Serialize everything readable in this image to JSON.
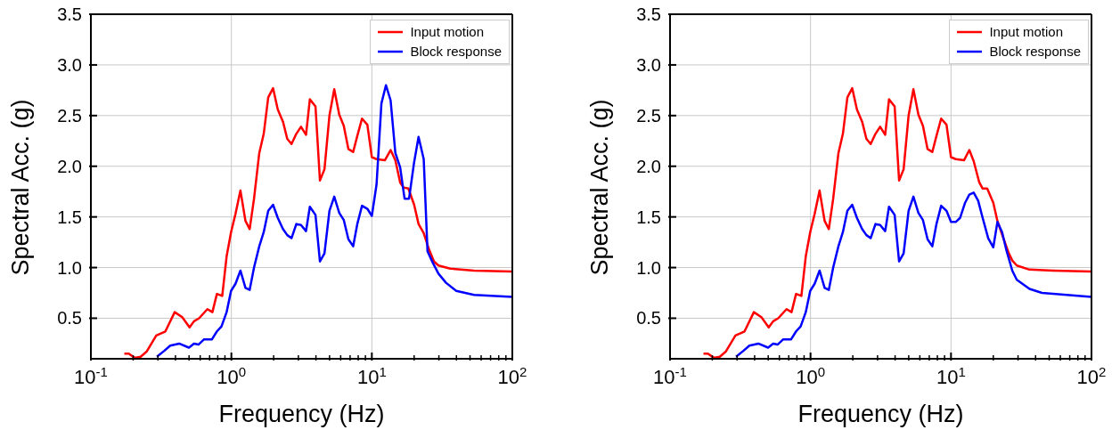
{
  "chart_data": [
    {
      "type": "line",
      "xlabel": "Frequency (Hz)",
      "ylabel": "Spectral Acc. (g)",
      "log": "x",
      "grid": true,
      "legend": "top right",
      "line_style": "solid",
      "marker": "none",
      "xlim": [
        0.1,
        100
      ],
      "ylim": [
        0.1,
        3.5
      ],
      "xticks": [
        {
          "value": 0.1,
          "label": "10$^{-1}$"
        },
        {
          "value": 0.2,
          "label": null
        },
        {
          "value": 0.3,
          "label": null
        },
        {
          "value": 0.4,
          "label": null
        },
        {
          "value": 0.5,
          "label": null
        },
        {
          "value": 0.6,
          "label": null
        },
        {
          "value": 0.7,
          "label": null
        },
        {
          "value": 0.8,
          "label": null
        },
        {
          "value": 0.9,
          "label": null
        },
        {
          "value": 1,
          "label": "10$^{0}$"
        },
        {
          "value": 2,
          "label": null
        },
        {
          "value": 3,
          "label": null
        },
        {
          "value": 4,
          "label": null
        },
        {
          "value": 5,
          "label": null
        },
        {
          "value": 6,
          "label": null
        },
        {
          "value": 7,
          "label": null
        },
        {
          "value": 8,
          "label": null
        },
        {
          "value": 9,
          "label": null
        },
        {
          "value": 10,
          "label": "10$^{1}$"
        },
        {
          "value": 20,
          "label": null
        },
        {
          "value": 30,
          "label": null
        },
        {
          "value": 40,
          "label": null
        },
        {
          "value": 50,
          "label": null
        },
        {
          "value": 60,
          "label": null
        },
        {
          "value": 70,
          "label": null
        },
        {
          "value": 80,
          "label": null
        },
        {
          "value": 90,
          "label": null
        },
        {
          "value": 100,
          "label": "10$^{2}$"
        }
      ],
      "yticks": [
        {
          "value": 0.5,
          "label": "0.5"
        },
        {
          "value": 1,
          "label": "1.0"
        },
        {
          "value": 1.5,
          "label": "1.5"
        },
        {
          "value": 2,
          "label": "2.0"
        },
        {
          "value": 2.5,
          "label": "2.5"
        },
        {
          "value": 3,
          "label": "3.0"
        },
        {
          "value": 3.5,
          "label": "3.5"
        }
      ],
      "series": [
        {
          "name": "Input motion",
          "color": "#ff0000",
          "x": [
            0.173,
            0.186,
            0.205,
            0.226,
            0.249,
            0.292,
            0.339,
            0.395,
            0.447,
            0.504,
            0.542,
            0.589,
            0.675,
            0.733,
            0.789,
            0.861,
            0.925,
            0.995,
            1.07,
            1.16,
            1.26,
            1.35,
            1.45,
            1.58,
            1.7,
            1.83,
            1.98,
            2.14,
            2.33,
            2.5,
            2.68,
            2.9,
            3.13,
            3.4,
            3.62,
            3.97,
            4.27,
            4.6,
            4.99,
            5.4,
            5.86,
            6.31,
            6.81,
            7.36,
            7.88,
            8.51,
            9.29,
            10.0,
            10.8,
            12.4,
            13.6,
            14.7,
            15.9,
            16.8,
            18.2,
            20.0,
            21.5,
            23.4,
            25.5,
            27.7,
            29.8,
            36.2,
            53.4,
            100
          ],
          "values": [
            0.15,
            0.15,
            0.11,
            0.12,
            0.17,
            0.33,
            0.37,
            0.56,
            0.51,
            0.41,
            0.47,
            0.5,
            0.59,
            0.56,
            0.74,
            0.72,
            1.11,
            1.35,
            1.53,
            1.76,
            1.46,
            1.38,
            1.68,
            2.13,
            2.32,
            2.68,
            2.77,
            2.56,
            2.44,
            2.27,
            2.22,
            2.32,
            2.39,
            2.31,
            2.66,
            2.59,
            1.86,
            1.97,
            2.5,
            2.76,
            2.51,
            2.4,
            2.17,
            2.14,
            2.3,
            2.47,
            2.41,
            2.09,
            2.07,
            2.06,
            2.16,
            2.06,
            1.84,
            1.79,
            1.78,
            1.62,
            1.43,
            1.34,
            1.18,
            1.06,
            1.02,
            0.99,
            0.97,
            0.96
          ]
        },
        {
          "name": "Block response",
          "color": "#0000ff",
          "x": [
            0.295,
            0.334,
            0.367,
            0.425,
            0.499,
            0.542,
            0.583,
            0.637,
            0.726,
            0.789,
            0.851,
            0.925,
            0.995,
            1.07,
            1.16,
            1.26,
            1.35,
            1.45,
            1.58,
            1.7,
            1.83,
            1.98,
            2.14,
            2.33,
            2.5,
            2.68,
            2.9,
            3.13,
            3.4,
            3.62,
            3.97,
            4.27,
            4.6,
            4.99,
            5.4,
            5.86,
            6.31,
            6.81,
            7.36,
            7.88,
            8.51,
            9.29,
            10.0,
            10.8,
            11.7,
            12.6,
            13.6,
            14.7,
            15.9,
            17.1,
            18.4,
            20.0,
            21.5,
            23.4,
            24.9,
            27.1,
            29.8,
            33.7,
            39.9,
            53.4,
            100
          ],
          "values": [
            0.12,
            0.18,
            0.23,
            0.25,
            0.21,
            0.25,
            0.24,
            0.29,
            0.29,
            0.37,
            0.42,
            0.56,
            0.77,
            0.84,
            0.97,
            0.8,
            0.78,
            1.0,
            1.21,
            1.35,
            1.56,
            1.62,
            1.49,
            1.38,
            1.32,
            1.29,
            1.43,
            1.42,
            1.36,
            1.6,
            1.52,
            1.06,
            1.14,
            1.56,
            1.7,
            1.54,
            1.47,
            1.28,
            1.21,
            1.43,
            1.61,
            1.58,
            1.51,
            1.82,
            2.62,
            2.8,
            2.65,
            2.13,
            1.99,
            1.68,
            1.68,
            2.04,
            2.29,
            2.07,
            1.16,
            1.05,
            0.94,
            0.85,
            0.77,
            0.73,
            0.71
          ]
        }
      ]
    },
    {
      "type": "line",
      "xlabel": "Frequency (Hz)",
      "ylabel": "Spectral Acc. (g)",
      "log": "x",
      "grid": true,
      "legend": "top right",
      "line_style": "solid",
      "marker": "none",
      "xlim": [
        0.1,
        100
      ],
      "ylim": [
        0.1,
        3.5
      ],
      "xticks": [
        {
          "value": 0.1,
          "label": "10$^{-1}$"
        },
        {
          "value": 0.2,
          "label": null
        },
        {
          "value": 0.3,
          "label": null
        },
        {
          "value": 0.4,
          "label": null
        },
        {
          "value": 0.5,
          "label": null
        },
        {
          "value": 0.6,
          "label": null
        },
        {
          "value": 0.7,
          "label": null
        },
        {
          "value": 0.8,
          "label": null
        },
        {
          "value": 0.9,
          "label": null
        },
        {
          "value": 1,
          "label": "10$^{0}$"
        },
        {
          "value": 2,
          "label": null
        },
        {
          "value": 3,
          "label": null
        },
        {
          "value": 4,
          "label": null
        },
        {
          "value": 5,
          "label": null
        },
        {
          "value": 6,
          "label": null
        },
        {
          "value": 7,
          "label": null
        },
        {
          "value": 8,
          "label": null
        },
        {
          "value": 9,
          "label": null
        },
        {
          "value": 10,
          "label": "10$^{1}$"
        },
        {
          "value": 20,
          "label": null
        },
        {
          "value": 30,
          "label": null
        },
        {
          "value": 40,
          "label": null
        },
        {
          "value": 50,
          "label": null
        },
        {
          "value": 60,
          "label": null
        },
        {
          "value": 70,
          "label": null
        },
        {
          "value": 80,
          "label": null
        },
        {
          "value": 90,
          "label": null
        },
        {
          "value": 100,
          "label": "10$^{2}$"
        }
      ],
      "yticks": [
        {
          "value": 0.5,
          "label": "0.5"
        },
        {
          "value": 1,
          "label": "1.0"
        },
        {
          "value": 1.5,
          "label": "1.5"
        },
        {
          "value": 2,
          "label": "2.0"
        },
        {
          "value": 2.5,
          "label": "2.5"
        },
        {
          "value": 3,
          "label": "3.0"
        },
        {
          "value": 3.5,
          "label": "3.5"
        }
      ],
      "series": [
        {
          "name": "Input motion",
          "color": "#ff0000",
          "x": [
            0.173,
            0.186,
            0.205,
            0.226,
            0.249,
            0.292,
            0.339,
            0.395,
            0.447,
            0.504,
            0.542,
            0.589,
            0.675,
            0.733,
            0.789,
            0.861,
            0.925,
            0.995,
            1.07,
            1.16,
            1.26,
            1.35,
            1.45,
            1.58,
            1.7,
            1.83,
            1.98,
            2.14,
            2.33,
            2.5,
            2.68,
            2.9,
            3.13,
            3.4,
            3.62,
            3.97,
            4.27,
            4.6,
            4.99,
            5.4,
            5.86,
            6.31,
            6.81,
            7.36,
            7.88,
            8.51,
            9.29,
            10.0,
            10.8,
            12.4,
            13.5,
            14.5,
            15.9,
            16.8,
            18.1,
            20.0,
            21.4,
            23.6,
            25.8,
            27.3,
            29.4,
            36.2,
            53.4,
            100
          ],
          "values": [
            0.15,
            0.15,
            0.11,
            0.12,
            0.17,
            0.33,
            0.37,
            0.56,
            0.51,
            0.41,
            0.47,
            0.5,
            0.59,
            0.56,
            0.74,
            0.72,
            1.11,
            1.35,
            1.53,
            1.76,
            1.46,
            1.38,
            1.68,
            2.13,
            2.32,
            2.68,
            2.77,
            2.56,
            2.44,
            2.27,
            2.22,
            2.32,
            2.39,
            2.31,
            2.66,
            2.59,
            1.86,
            1.97,
            2.5,
            2.76,
            2.51,
            2.4,
            2.17,
            2.14,
            2.3,
            2.47,
            2.41,
            2.09,
            2.07,
            2.06,
            2.16,
            2.05,
            1.84,
            1.78,
            1.78,
            1.64,
            1.46,
            1.29,
            1.14,
            1.07,
            1.02,
            0.98,
            0.97,
            0.96
          ]
        },
        {
          "name": "Block response",
          "color": "#0000ff",
          "x": [
            0.295,
            0.334,
            0.367,
            0.425,
            0.499,
            0.542,
            0.583,
            0.637,
            0.726,
            0.789,
            0.851,
            0.925,
            0.995,
            1.07,
            1.16,
            1.26,
            1.35,
            1.45,
            1.58,
            1.7,
            1.83,
            1.98,
            2.14,
            2.33,
            2.5,
            2.68,
            2.9,
            3.13,
            3.4,
            3.62,
            3.97,
            4.27,
            4.6,
            4.99,
            5.4,
            5.86,
            6.31,
            6.81,
            7.36,
            7.88,
            8.51,
            9.29,
            10.0,
            10.8,
            11.6,
            12.6,
            13.5,
            14.5,
            15.6,
            16.8,
            18.4,
            20.0,
            21.4,
            23.1,
            24.8,
            27.3,
            29.4,
            36.2,
            44.4,
            100
          ],
          "values": [
            0.12,
            0.18,
            0.23,
            0.25,
            0.21,
            0.25,
            0.24,
            0.29,
            0.29,
            0.37,
            0.42,
            0.56,
            0.77,
            0.84,
            0.97,
            0.8,
            0.78,
            1.0,
            1.21,
            1.35,
            1.56,
            1.62,
            1.49,
            1.38,
            1.32,
            1.29,
            1.43,
            1.42,
            1.36,
            1.6,
            1.52,
            1.06,
            1.14,
            1.56,
            1.7,
            1.54,
            1.47,
            1.28,
            1.21,
            1.43,
            1.61,
            1.56,
            1.45,
            1.45,
            1.49,
            1.64,
            1.72,
            1.74,
            1.66,
            1.49,
            1.29,
            1.2,
            1.45,
            1.35,
            1.17,
            0.97,
            0.88,
            0.79,
            0.75,
            0.71
          ]
        }
      ]
    }
  ]
}
